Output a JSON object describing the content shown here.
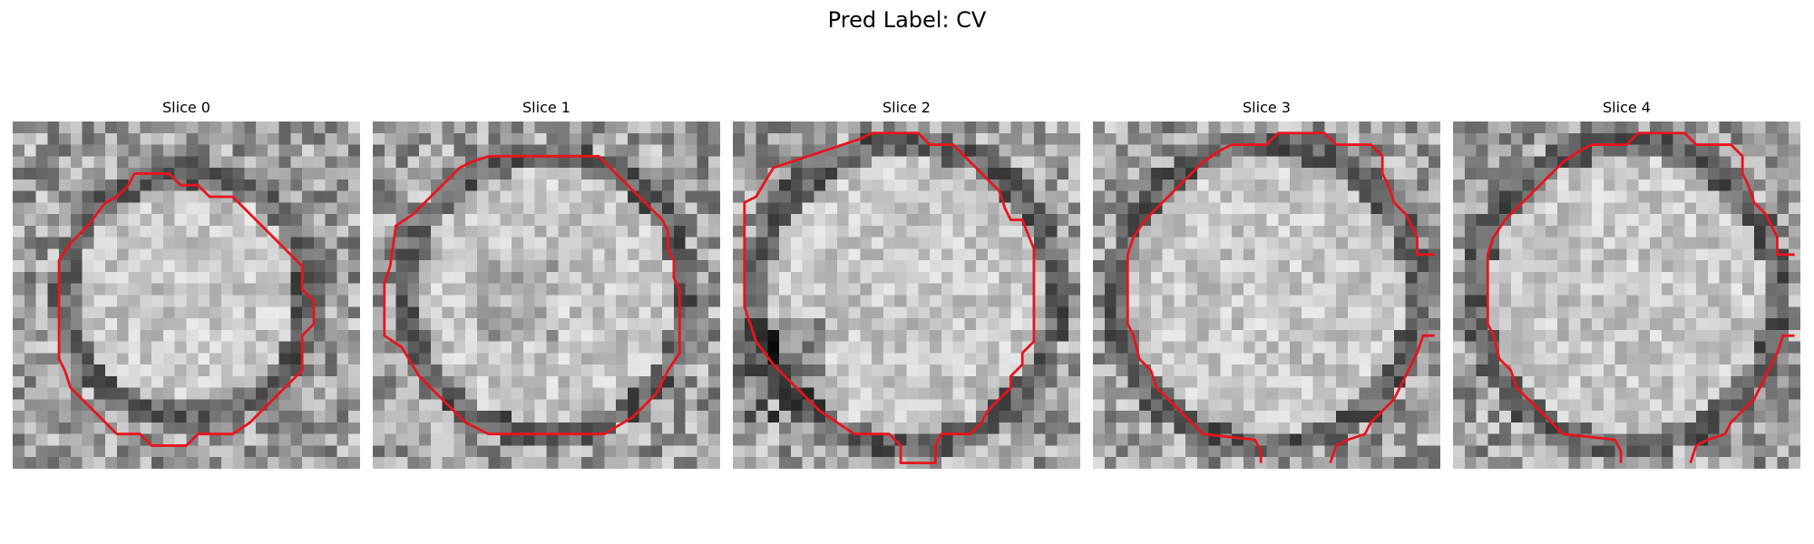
{
  "figure": {
    "title": "Pred Label: CV"
  },
  "panels": [
    {
      "title": "Slice 0",
      "seed": 11,
      "shape": "circle"
    },
    {
      "title": "Slice 1",
      "seed": 23,
      "shape": "octagon"
    },
    {
      "title": "Slice 2",
      "seed": 37,
      "shape": "blob"
    },
    {
      "title": "Slice 3",
      "seed": 41,
      "shape": "open"
    },
    {
      "title": "Slice 4",
      "seed": 53,
      "shape": "open"
    }
  ],
  "colors": {
    "contour": "#e8141c",
    "background": "#ffffff"
  }
}
